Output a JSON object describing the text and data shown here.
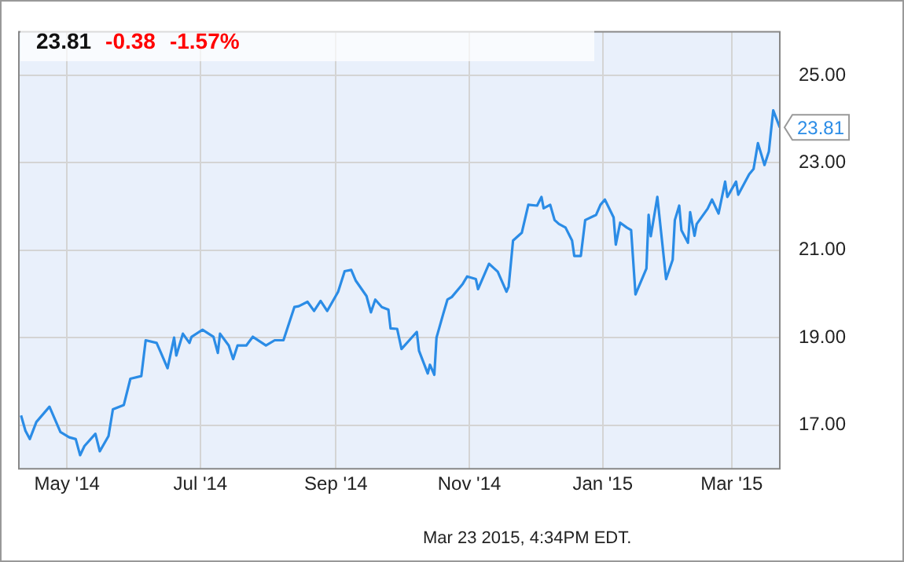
{
  "chart_data": {
    "type": "line",
    "x": [
      "2014-04-10",
      "2014-04-12",
      "2014-04-14",
      "2014-04-17",
      "2014-04-23",
      "2014-04-28",
      "2014-05-02",
      "2014-05-05",
      "2014-05-07",
      "2014-05-09",
      "2014-05-14",
      "2014-05-16",
      "2014-05-20",
      "2014-05-22",
      "2014-05-27",
      "2014-05-30",
      "2014-06-04",
      "2014-06-06",
      "2014-06-11",
      "2014-06-13",
      "2014-06-16",
      "2014-06-19",
      "2014-06-20",
      "2014-06-23",
      "2014-06-26",
      "2014-06-27",
      "2014-07-02",
      "2014-07-07",
      "2014-07-09",
      "2014-07-10",
      "2014-07-14",
      "2014-07-16",
      "2014-07-18",
      "2014-07-22",
      "2014-07-25",
      "2014-07-31",
      "2014-08-04",
      "2014-08-08",
      "2014-08-13",
      "2014-08-15",
      "2014-08-19",
      "2014-08-22",
      "2014-08-25",
      "2014-08-28",
      "2014-09-02",
      "2014-09-05",
      "2014-09-08",
      "2014-09-10",
      "2014-09-15",
      "2014-09-17",
      "2014-09-19",
      "2014-09-22",
      "2014-09-25",
      "2014-09-26",
      "2014-09-29",
      "2014-10-01",
      "2014-10-06",
      "2014-10-08",
      "2014-10-09",
      "2014-10-13",
      "2014-10-14",
      "2014-10-16",
      "2014-10-17",
      "2014-10-20",
      "2014-10-22",
      "2014-10-24",
      "2014-10-29",
      "2014-10-31",
      "2014-11-04",
      "2014-11-05",
      "2014-11-10",
      "2014-11-14",
      "2014-11-18",
      "2014-11-19",
      "2014-11-21",
      "2014-11-25",
      "2014-11-28",
      "2014-12-02",
      "2014-12-04",
      "2014-12-05",
      "2014-12-08",
      "2014-12-10",
      "2014-12-12",
      "2014-12-15",
      "2014-12-18",
      "2014-12-19",
      "2014-12-22",
      "2014-12-24",
      "2014-12-29",
      "2014-12-31",
      "2015-01-02",
      "2015-01-06",
      "2015-01-07",
      "2015-01-09",
      "2015-01-12",
      "2015-01-14",
      "2015-01-16",
      "2015-01-21",
      "2015-01-22",
      "2015-01-23",
      "2015-01-26",
      "2015-01-30",
      "2015-02-02",
      "2015-02-03",
      "2015-02-05",
      "2015-02-06",
      "2015-02-09",
      "2015-02-10",
      "2015-02-12",
      "2015-02-13",
      "2015-02-18",
      "2015-02-20",
      "2015-02-23",
      "2015-02-26",
      "2015-02-27",
      "2015-03-03",
      "2015-03-04",
      "2015-03-09",
      "2015-03-11",
      "2015-03-13",
      "2015-03-16",
      "2015-03-18",
      "2015-03-19",
      "2015-03-20",
      "2015-03-23"
    ],
    "series": [
      {
        "color": "#2b8ce6",
        "values": [
          17.22,
          16.87,
          16.68,
          17.07,
          17.42,
          16.84,
          16.72,
          16.68,
          16.31,
          16.52,
          16.8,
          16.4,
          16.75,
          17.36,
          17.46,
          18.06,
          18.12,
          18.94,
          18.88,
          18.65,
          18.3,
          19.0,
          18.59,
          19.09,
          18.88,
          19.02,
          19.18,
          19.02,
          18.65,
          19.09,
          18.82,
          18.51,
          18.82,
          18.82,
          19.02,
          18.82,
          18.94,
          18.94,
          19.7,
          19.72,
          19.82,
          19.61,
          19.84,
          19.61,
          20.05,
          20.52,
          20.55,
          20.31,
          19.95,
          19.58,
          19.87,
          19.7,
          19.64,
          19.21,
          19.2,
          18.74,
          19.02,
          19.13,
          18.7,
          18.18,
          18.38,
          18.15,
          19.0,
          19.53,
          19.87,
          19.93,
          20.23,
          20.4,
          20.34,
          20.11,
          20.69,
          20.51,
          20.05,
          20.17,
          21.22,
          21.4,
          22.04,
          22.02,
          22.22,
          21.96,
          22.04,
          21.69,
          21.6,
          21.52,
          21.22,
          20.87,
          20.87,
          21.69,
          21.81,
          22.04,
          22.16,
          21.75,
          21.13,
          21.63,
          21.52,
          21.46,
          19.99,
          20.58,
          21.81,
          21.32,
          22.22,
          20.34,
          20.78,
          21.69,
          22.02,
          21.46,
          21.17,
          21.87,
          21.33,
          21.6,
          21.95,
          22.16,
          21.84,
          22.57,
          22.22,
          22.57,
          22.27,
          22.74,
          22.86,
          23.45,
          22.95,
          23.26,
          23.74,
          24.2,
          23.81
        ]
      }
    ],
    "xlim": [
      "2014-04-09",
      "2015-03-23"
    ],
    "xticks": [
      {
        "value": "2014-05-01",
        "label": "May '14"
      },
      {
        "value": "2014-07-01",
        "label": "Jul '14"
      },
      {
        "value": "2014-09-01",
        "label": "Sep '14"
      },
      {
        "value": "2014-11-01",
        "label": "Nov '14"
      },
      {
        "value": "2015-01-01",
        "label": "Jan '15"
      },
      {
        "value": "2015-03-01",
        "label": "Mar '15"
      }
    ],
    "ylim": [
      16,
      26
    ],
    "yticks": [
      {
        "value": 17,
        "label": "17.00"
      },
      {
        "value": 19,
        "label": "19.00"
      },
      {
        "value": 21,
        "label": "21.00"
      },
      {
        "value": 23,
        "label": "23.00"
      },
      {
        "value": 25,
        "label": "25.00"
      }
    ],
    "grid": true,
    "legend": false,
    "marker": "none",
    "line_style": "solid",
    "annotations": [
      "23.81",
      "-0.38",
      "-1.57%",
      {
        "text": "23.81",
        "x": "2015-03-23",
        "y": 23.81
      },
      "Mar 23 2015, 4:34PM EDT."
    ]
  }
}
